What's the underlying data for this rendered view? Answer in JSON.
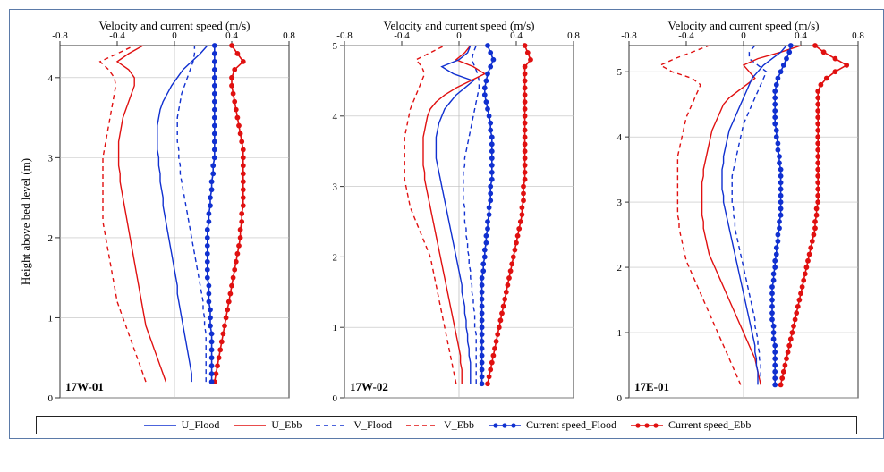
{
  "figure": {
    "border_color": "#5b7aa8",
    "background_color": "#ffffff",
    "grid_color": "#bfbfbf",
    "axis_color": "#333333",
    "font_family": "Times New Roman",
    "label_fontsize": 13,
    "tick_fontsize": 11,
    "panel_label_fontsize": 13
  },
  "axes": {
    "x_label": "Velocity and current speed (m/s)",
    "y_label": "Height above bed level (m)",
    "xlim": [
      -0.8,
      0.8
    ],
    "xticks": [
      -0.8,
      -0.4,
      0,
      0.4,
      0.8
    ]
  },
  "series_style": {
    "U_Flood": {
      "color": "#1030d0",
      "dash": "",
      "marker": "none",
      "lw": 1.4
    },
    "U_Ebb": {
      "color": "#e01010",
      "dash": "",
      "marker": "none",
      "lw": 1.4
    },
    "V_Flood": {
      "color": "#1030d0",
      "dash": "5,4",
      "marker": "none",
      "lw": 1.4
    },
    "V_Ebb": {
      "color": "#e01010",
      "dash": "5,4",
      "marker": "none",
      "lw": 1.4
    },
    "CS_Flood": {
      "color": "#1030d0",
      "dash": "",
      "marker": "circle",
      "lw": 1.6
    },
    "CS_Ebb": {
      "color": "#e01010",
      "dash": "",
      "marker": "circle",
      "lw": 1.6
    }
  },
  "legend": {
    "items": [
      {
        "key": "U_Flood",
        "label": "U_Flood"
      },
      {
        "key": "U_Ebb",
        "label": "U_Ebb"
      },
      {
        "key": "V_Flood",
        "label": "V_Flood"
      },
      {
        "key": "V_Ebb",
        "label": "V_Ebb"
      },
      {
        "key": "CS_Flood",
        "label": "Current speed_Flood"
      },
      {
        "key": "CS_Ebb",
        "label": "Current speed_Ebb"
      }
    ]
  },
  "panels": [
    {
      "id": "17W-01",
      "ymax": 4.4,
      "yticks": [
        0,
        1,
        2,
        3,
        4
      ],
      "heights": [
        0.2,
        0.3,
        0.4,
        0.5,
        0.6,
        0.7,
        0.8,
        0.9,
        1.0,
        1.1,
        1.2,
        1.3,
        1.4,
        1.5,
        1.6,
        1.7,
        1.8,
        1.9,
        2.0,
        2.1,
        2.2,
        2.3,
        2.4,
        2.5,
        2.6,
        2.7,
        2.8,
        2.9,
        3.0,
        3.1,
        3.2,
        3.3,
        3.4,
        3.5,
        3.6,
        3.7,
        3.8,
        3.9,
        4.0,
        4.1,
        4.2,
        4.3,
        4.4
      ],
      "series": {
        "U_Flood": [
          0.12,
          0.12,
          0.11,
          0.1,
          0.09,
          0.08,
          0.07,
          0.06,
          0.05,
          0.04,
          0.03,
          0.02,
          0.02,
          0.01,
          0.0,
          -0.01,
          -0.02,
          -0.03,
          -0.04,
          -0.05,
          -0.06,
          -0.07,
          -0.08,
          -0.08,
          -0.09,
          -0.1,
          -0.1,
          -0.11,
          -0.11,
          -0.12,
          -0.12,
          -0.12,
          -0.12,
          -0.11,
          -0.1,
          -0.08,
          -0.05,
          -0.02,
          0.02,
          0.06,
          0.12,
          0.18,
          0.23
        ],
        "U_Ebb": [
          -0.06,
          -0.08,
          -0.1,
          -0.12,
          -0.14,
          -0.16,
          -0.18,
          -0.2,
          -0.21,
          -0.22,
          -0.23,
          -0.24,
          -0.25,
          -0.26,
          -0.27,
          -0.28,
          -0.29,
          -0.3,
          -0.31,
          -0.32,
          -0.33,
          -0.34,
          -0.35,
          -0.36,
          -0.37,
          -0.38,
          -0.38,
          -0.39,
          -0.39,
          -0.39,
          -0.39,
          -0.38,
          -0.37,
          -0.36,
          -0.34,
          -0.32,
          -0.3,
          -0.28,
          -0.28,
          -0.32,
          -0.4,
          -0.32,
          -0.22
        ],
        "V_Flood": [
          0.22,
          0.22,
          0.22,
          0.22,
          0.22,
          0.22,
          0.22,
          0.21,
          0.21,
          0.2,
          0.2,
          0.19,
          0.18,
          0.17,
          0.16,
          0.15,
          0.14,
          0.13,
          0.12,
          0.11,
          0.1,
          0.09,
          0.08,
          0.07,
          0.06,
          0.05,
          0.04,
          0.04,
          0.03,
          0.03,
          0.02,
          0.02,
          0.02,
          0.02,
          0.03,
          0.04,
          0.05,
          0.07,
          0.09,
          0.11,
          0.13,
          0.14,
          0.14
        ],
        "V_Ebb": [
          -0.2,
          -0.22,
          -0.24,
          -0.26,
          -0.28,
          -0.3,
          -0.32,
          -0.34,
          -0.36,
          -0.38,
          -0.4,
          -0.41,
          -0.42,
          -0.43,
          -0.44,
          -0.45,
          -0.46,
          -0.47,
          -0.48,
          -0.49,
          -0.5,
          -0.5,
          -0.5,
          -0.5,
          -0.5,
          -0.5,
          -0.5,
          -0.5,
          -0.5,
          -0.49,
          -0.48,
          -0.47,
          -0.46,
          -0.45,
          -0.44,
          -0.43,
          -0.42,
          -0.41,
          -0.42,
          -0.46,
          -0.52,
          -0.4,
          -0.28
        ],
        "CS_Flood": [
          0.26,
          0.26,
          0.26,
          0.26,
          0.26,
          0.26,
          0.26,
          0.25,
          0.25,
          0.25,
          0.24,
          0.24,
          0.24,
          0.23,
          0.23,
          0.23,
          0.23,
          0.23,
          0.23,
          0.23,
          0.24,
          0.24,
          0.25,
          0.25,
          0.26,
          0.26,
          0.27,
          0.27,
          0.28,
          0.28,
          0.28,
          0.28,
          0.28,
          0.28,
          0.28,
          0.28,
          0.28,
          0.28,
          0.28,
          0.28,
          0.28,
          0.28,
          0.28
        ],
        "CS_Ebb": [
          0.28,
          0.29,
          0.3,
          0.31,
          0.32,
          0.33,
          0.34,
          0.35,
          0.36,
          0.37,
          0.38,
          0.39,
          0.4,
          0.41,
          0.42,
          0.43,
          0.44,
          0.45,
          0.46,
          0.46,
          0.47,
          0.47,
          0.48,
          0.48,
          0.48,
          0.48,
          0.48,
          0.48,
          0.48,
          0.48,
          0.47,
          0.46,
          0.45,
          0.44,
          0.43,
          0.42,
          0.41,
          0.4,
          0.4,
          0.42,
          0.48,
          0.44,
          0.4
        ]
      }
    },
    {
      "id": "17W-02",
      "ymax": 5.0,
      "yticks": [
        0,
        1,
        2,
        3,
        4,
        5
      ],
      "heights": [
        0.2,
        0.3,
        0.4,
        0.5,
        0.6,
        0.7,
        0.8,
        0.9,
        1.0,
        1.1,
        1.2,
        1.3,
        1.4,
        1.5,
        1.6,
        1.7,
        1.8,
        1.9,
        2.0,
        2.1,
        2.2,
        2.3,
        2.4,
        2.5,
        2.6,
        2.7,
        2.8,
        2.9,
        3.0,
        3.1,
        3.2,
        3.3,
        3.4,
        3.5,
        3.6,
        3.7,
        3.8,
        3.9,
        4.0,
        4.1,
        4.2,
        4.3,
        4.4,
        4.5,
        4.6,
        4.7,
        4.8,
        4.9,
        5.0
      ],
      "series": {
        "U_Flood": [
          0.08,
          0.08,
          0.08,
          0.08,
          0.07,
          0.07,
          0.06,
          0.06,
          0.05,
          0.05,
          0.04,
          0.04,
          0.03,
          0.02,
          0.02,
          0.01,
          0.0,
          -0.01,
          -0.02,
          -0.03,
          -0.04,
          -0.05,
          -0.06,
          -0.07,
          -0.08,
          -0.09,
          -0.1,
          -0.11,
          -0.12,
          -0.13,
          -0.14,
          -0.15,
          -0.16,
          -0.16,
          -0.16,
          -0.16,
          -0.15,
          -0.14,
          -0.12,
          -0.1,
          -0.06,
          -0.02,
          0.04,
          0.1,
          -0.04,
          -0.12,
          0.0,
          0.06,
          0.08
        ],
        "U_Ebb": [
          0.02,
          0.02,
          0.02,
          0.01,
          0.01,
          0.0,
          -0.01,
          -0.02,
          -0.03,
          -0.04,
          -0.05,
          -0.06,
          -0.07,
          -0.08,
          -0.09,
          -0.1,
          -0.11,
          -0.12,
          -0.13,
          -0.14,
          -0.15,
          -0.16,
          -0.17,
          -0.18,
          -0.19,
          -0.2,
          -0.21,
          -0.22,
          -0.23,
          -0.24,
          -0.24,
          -0.25,
          -0.25,
          -0.25,
          -0.25,
          -0.25,
          -0.24,
          -0.23,
          -0.22,
          -0.2,
          -0.16,
          -0.1,
          -0.02,
          0.08,
          0.18,
          0.1,
          -0.02,
          0.04,
          0.08
        ],
        "V_Flood": [
          0.12,
          0.12,
          0.12,
          0.12,
          0.12,
          0.12,
          0.12,
          0.12,
          0.11,
          0.11,
          0.11,
          0.1,
          0.1,
          0.09,
          0.09,
          0.08,
          0.08,
          0.07,
          0.07,
          0.06,
          0.06,
          0.05,
          0.05,
          0.04,
          0.04,
          0.04,
          0.03,
          0.03,
          0.03,
          0.03,
          0.03,
          0.04,
          0.04,
          0.05,
          0.06,
          0.07,
          0.08,
          0.09,
          0.1,
          0.11,
          0.12,
          0.13,
          0.14,
          0.14,
          0.13,
          0.11,
          0.09,
          0.1,
          0.12
        ],
        "V_Ebb": [
          -0.02,
          -0.03,
          -0.04,
          -0.05,
          -0.06,
          -0.07,
          -0.08,
          -0.09,
          -0.1,
          -0.11,
          -0.12,
          -0.13,
          -0.14,
          -0.15,
          -0.16,
          -0.17,
          -0.18,
          -0.19,
          -0.2,
          -0.22,
          -0.24,
          -0.26,
          -0.28,
          -0.3,
          -0.32,
          -0.34,
          -0.35,
          -0.36,
          -0.37,
          -0.38,
          -0.38,
          -0.38,
          -0.38,
          -0.38,
          -0.38,
          -0.38,
          -0.37,
          -0.36,
          -0.35,
          -0.34,
          -0.32,
          -0.3,
          -0.28,
          -0.26,
          -0.24,
          -0.26,
          -0.3,
          -0.2,
          -0.1
        ],
        "CS_Flood": [
          0.16,
          0.16,
          0.16,
          0.16,
          0.16,
          0.16,
          0.16,
          0.16,
          0.16,
          0.16,
          0.16,
          0.16,
          0.16,
          0.16,
          0.16,
          0.16,
          0.17,
          0.17,
          0.18,
          0.18,
          0.19,
          0.19,
          0.2,
          0.2,
          0.21,
          0.21,
          0.22,
          0.22,
          0.22,
          0.23,
          0.23,
          0.23,
          0.23,
          0.23,
          0.23,
          0.23,
          0.22,
          0.22,
          0.21,
          0.2,
          0.19,
          0.18,
          0.18,
          0.19,
          0.2,
          0.22,
          0.24,
          0.22,
          0.2
        ],
        "CS_Ebb": [
          0.2,
          0.21,
          0.22,
          0.23,
          0.24,
          0.25,
          0.26,
          0.27,
          0.28,
          0.29,
          0.3,
          0.31,
          0.32,
          0.33,
          0.34,
          0.35,
          0.36,
          0.37,
          0.38,
          0.39,
          0.4,
          0.41,
          0.42,
          0.43,
          0.44,
          0.44,
          0.45,
          0.45,
          0.45,
          0.46,
          0.46,
          0.46,
          0.46,
          0.46,
          0.46,
          0.46,
          0.46,
          0.46,
          0.46,
          0.46,
          0.46,
          0.46,
          0.46,
          0.46,
          0.46,
          0.46,
          0.5,
          0.48,
          0.46
        ]
      }
    },
    {
      "id": "17E-01",
      "ymax": 5.4,
      "yticks": [
        0,
        1,
        2,
        3,
        4,
        5
      ],
      "heights": [
        0.2,
        0.3,
        0.4,
        0.5,
        0.6,
        0.7,
        0.8,
        0.9,
        1.0,
        1.1,
        1.2,
        1.3,
        1.4,
        1.5,
        1.6,
        1.7,
        1.8,
        1.9,
        2.0,
        2.1,
        2.2,
        2.3,
        2.4,
        2.5,
        2.6,
        2.7,
        2.8,
        2.9,
        3.0,
        3.1,
        3.2,
        3.3,
        3.4,
        3.5,
        3.6,
        3.7,
        3.8,
        3.9,
        4.0,
        4.1,
        4.2,
        4.3,
        4.4,
        4.5,
        4.6,
        4.7,
        4.8,
        4.9,
        5.0,
        5.1,
        5.2,
        5.3,
        5.4
      ],
      "series": {
        "U_Flood": [
          0.1,
          0.1,
          0.1,
          0.09,
          0.09,
          0.08,
          0.08,
          0.07,
          0.06,
          0.05,
          0.04,
          0.03,
          0.02,
          0.01,
          0.0,
          -0.01,
          -0.02,
          -0.03,
          -0.04,
          -0.05,
          -0.06,
          -0.07,
          -0.08,
          -0.09,
          -0.1,
          -0.11,
          -0.12,
          -0.13,
          -0.14,
          -0.14,
          -0.15,
          -0.15,
          -0.15,
          -0.15,
          -0.14,
          -0.14,
          -0.13,
          -0.12,
          -0.11,
          -0.1,
          -0.08,
          -0.06,
          -0.04,
          -0.02,
          0.0,
          0.02,
          0.04,
          0.06,
          0.1,
          0.14,
          0.2,
          0.26,
          0.3
        ],
        "U_Ebb": [
          0.12,
          0.11,
          0.1,
          0.09,
          0.08,
          0.06,
          0.04,
          0.02,
          0.0,
          -0.02,
          -0.04,
          -0.06,
          -0.08,
          -0.1,
          -0.12,
          -0.14,
          -0.16,
          -0.18,
          -0.2,
          -0.22,
          -0.24,
          -0.25,
          -0.26,
          -0.27,
          -0.28,
          -0.28,
          -0.29,
          -0.29,
          -0.29,
          -0.29,
          -0.29,
          -0.29,
          -0.28,
          -0.28,
          -0.27,
          -0.26,
          -0.25,
          -0.24,
          -0.23,
          -0.22,
          -0.2,
          -0.18,
          -0.16,
          -0.14,
          -0.1,
          -0.04,
          0.02,
          0.08,
          0.04,
          0.0,
          0.1,
          0.26,
          0.4
        ],
        "V_Flood": [
          0.12,
          0.12,
          0.12,
          0.12,
          0.11,
          0.11,
          0.1,
          0.1,
          0.09,
          0.08,
          0.08,
          0.07,
          0.06,
          0.05,
          0.04,
          0.03,
          0.02,
          0.01,
          0.0,
          -0.01,
          -0.02,
          -0.03,
          -0.04,
          -0.05,
          -0.06,
          -0.06,
          -0.07,
          -0.07,
          -0.08,
          -0.08,
          -0.08,
          -0.08,
          -0.08,
          -0.07,
          -0.06,
          -0.05,
          -0.04,
          -0.03,
          -0.02,
          -0.01,
          0.0,
          0.02,
          0.04,
          0.06,
          0.08,
          0.1,
          0.12,
          0.14,
          0.16,
          0.1,
          0.04,
          0.04,
          0.08
        ],
        "V_Ebb": [
          -0.02,
          -0.04,
          -0.06,
          -0.08,
          -0.1,
          -0.12,
          -0.14,
          -0.16,
          -0.18,
          -0.2,
          -0.22,
          -0.24,
          -0.26,
          -0.28,
          -0.3,
          -0.32,
          -0.34,
          -0.36,
          -0.38,
          -0.4,
          -0.41,
          -0.42,
          -0.43,
          -0.44,
          -0.45,
          -0.45,
          -0.46,
          -0.46,
          -0.46,
          -0.46,
          -0.46,
          -0.46,
          -0.46,
          -0.46,
          -0.46,
          -0.46,
          -0.45,
          -0.44,
          -0.43,
          -0.42,
          -0.41,
          -0.4,
          -0.38,
          -0.36,
          -0.34,
          -0.32,
          -0.3,
          -0.36,
          -0.5,
          -0.58,
          -0.48,
          -0.36,
          -0.24
        ],
        "CS_Flood": [
          0.22,
          0.22,
          0.22,
          0.22,
          0.22,
          0.22,
          0.22,
          0.21,
          0.21,
          0.21,
          0.2,
          0.2,
          0.2,
          0.2,
          0.2,
          0.2,
          0.21,
          0.21,
          0.22,
          0.22,
          0.23,
          0.23,
          0.24,
          0.24,
          0.25,
          0.25,
          0.26,
          0.26,
          0.26,
          0.26,
          0.26,
          0.26,
          0.26,
          0.26,
          0.25,
          0.25,
          0.24,
          0.24,
          0.23,
          0.23,
          0.22,
          0.22,
          0.22,
          0.22,
          0.22,
          0.22,
          0.23,
          0.24,
          0.26,
          0.28,
          0.3,
          0.32,
          0.33
        ],
        "CS_Ebb": [
          0.26,
          0.27,
          0.28,
          0.29,
          0.3,
          0.31,
          0.32,
          0.33,
          0.34,
          0.35,
          0.36,
          0.37,
          0.38,
          0.39,
          0.4,
          0.41,
          0.42,
          0.43,
          0.44,
          0.45,
          0.46,
          0.47,
          0.48,
          0.49,
          0.5,
          0.5,
          0.51,
          0.51,
          0.52,
          0.52,
          0.52,
          0.52,
          0.52,
          0.52,
          0.52,
          0.52,
          0.52,
          0.52,
          0.52,
          0.52,
          0.52,
          0.52,
          0.52,
          0.52,
          0.52,
          0.52,
          0.54,
          0.58,
          0.64,
          0.72,
          0.64,
          0.56,
          0.5
        ]
      }
    }
  ]
}
